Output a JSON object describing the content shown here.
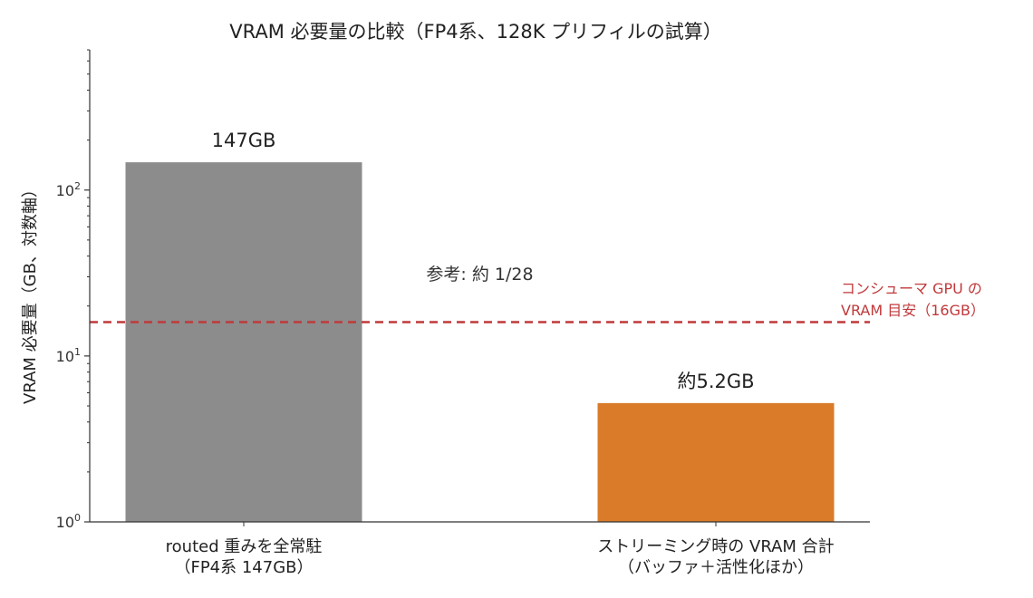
{
  "chart_data": {
    "type": "bar",
    "title": "VRAM 必要量の比較（FP4系、128K プリフィルの試算）",
    "ylabel": "VRAM 必要量（GB、対数軸）",
    "yscale": "log",
    "ylim": [
      1,
      700
    ],
    "yticks": [
      {
        "value": 1,
        "base": "10",
        "exp": "0"
      },
      {
        "value": 10,
        "base": "10",
        "exp": "1"
      },
      {
        "value": 100,
        "base": "10",
        "exp": "2"
      }
    ],
    "categories": [
      [
        "routed 重みを全常駐",
        "（FP4系 147GB）"
      ],
      [
        "ストリーミング時の VRAM 合計",
        "（バッファ＋活性化ほか）"
      ]
    ],
    "values": [
      147,
      5.2
    ],
    "data_labels": [
      "147GB",
      "約5.2GB"
    ],
    "colors": [
      "#8c8c8c",
      "#d97b29"
    ],
    "reference_line": {
      "value": 16,
      "label": [
        "コンシューマ GPU の",
        "VRAM 目安（16GB）"
      ],
      "color": "#c0393b"
    },
    "annotation": {
      "text": "参考: 約 1/28",
      "x": 0.5,
      "y": 28
    },
    "grid": false
  }
}
